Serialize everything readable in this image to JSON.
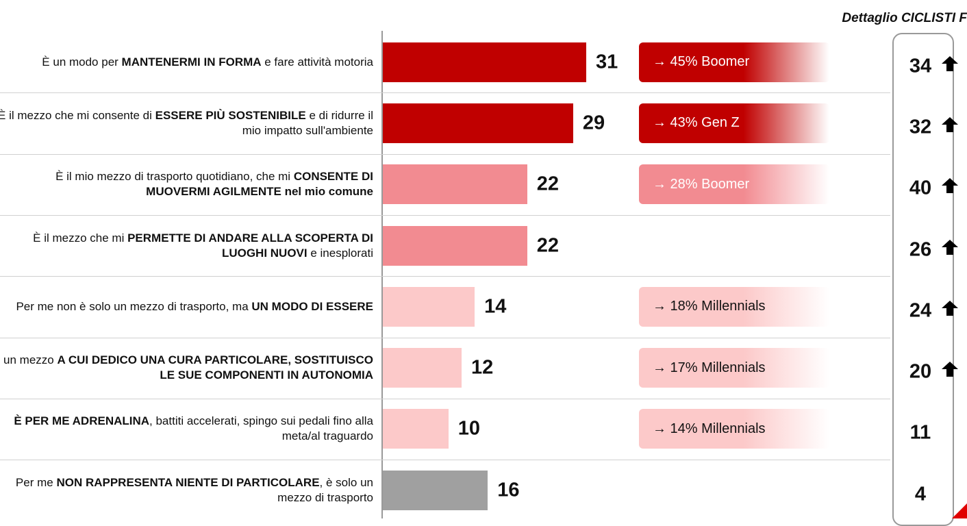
{
  "chart_data": {
    "type": "bar",
    "orientation": "horizontal",
    "title": "Dettaglio CICLISTI F",
    "categories": [
      [
        {
          "text": "È un modo per ",
          "bold": false
        },
        {
          "text": "MANTENERMI IN FORMA",
          "bold": true
        },
        {
          "text": " e fare attività motoria",
          "bold": false
        }
      ],
      [
        {
          "text": "È il mezzo che mi consente di ",
          "bold": false
        },
        {
          "text": "ESSERE PIÙ SOSTENIBILE",
          "bold": true
        },
        {
          "text": " e di ridurre il mio impatto sull'ambiente",
          "bold": false
        }
      ],
      [
        {
          "text": "È il mio mezzo di trasporto quotidiano, che mi ",
          "bold": false
        },
        {
          "text": "CONSENTE DI MUOVERMI AGILMENTE nel mio comune",
          "bold": true
        }
      ],
      [
        {
          "text": "È il mezzo che mi ",
          "bold": false
        },
        {
          "text": "PERMETTE DI ANDARE ALLA SCOPERTA DI LUOGHI NUOVI",
          "bold": true
        },
        {
          "text": " e inesplorati",
          "bold": false
        }
      ],
      [
        {
          "text": "Per me non è solo un mezzo di trasporto, ma ",
          "bold": false
        },
        {
          "text": "UN MODO DI ESSERE",
          "bold": true
        }
      ],
      [
        {
          "text": "È un mezzo ",
          "bold": false
        },
        {
          "text": "A CUI DEDICO UNA CURA PARTICOLARE, SOSTITUISCO LE SUE COMPONENTI IN AUTONOMIA",
          "bold": true
        }
      ],
      [
        {
          "text": "È PER ME ADRENALINA",
          "bold": true
        },
        {
          "text": ", battiti accelerati, spingo sui pedali fino alla meta/al traguardo",
          "bold": false
        }
      ],
      [
        {
          "text": "Per me ",
          "bold": false
        },
        {
          "text": "NON RAPPRESENTA NIENTE DI PARTICOLARE",
          "bold": true
        },
        {
          "text": ", è solo un mezzo di trasporto",
          "bold": false
        }
      ]
    ],
    "values": [
      31,
      29,
      22,
      22,
      14,
      12,
      10,
      16
    ],
    "colors": [
      "#c00000",
      "#c00000",
      "#f28b91",
      "#f28b91",
      "#fcc9c9",
      "#fcc9c9",
      "#fcc9c9",
      "#a0a0a0"
    ],
    "callouts": [
      "→ 45% Boomer",
      "→ 43% Gen Z",
      "→ 28% Boomer",
      null,
      "→ 18% Millennials",
      "→ 17% Millennials",
      "→ 14% Millennials",
      null
    ],
    "detail_values": [
      34,
      32,
      40,
      26,
      24,
      20,
      11,
      4
    ],
    "detail_up": [
      true,
      true,
      true,
      true,
      true,
      true,
      false,
      false
    ]
  }
}
